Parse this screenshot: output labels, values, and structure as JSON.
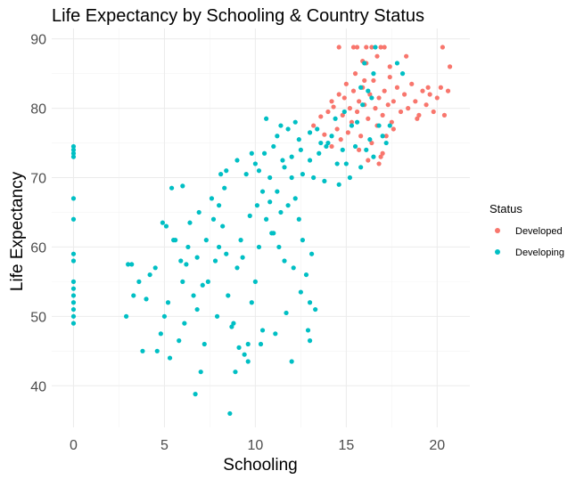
{
  "chart_data": {
    "type": "scatter",
    "title": "Life Expectancy by Schooling & Country Status",
    "xlabel": "Schooling",
    "ylabel": "Life Expectancy",
    "xlim": [
      -1.2,
      21.8
    ],
    "ylim": [
      34,
      91.5
    ],
    "xticks": [
      0,
      5,
      10,
      15,
      20
    ],
    "yticks": [
      40,
      50,
      60,
      70,
      80,
      90
    ],
    "grid": true,
    "legend": {
      "title": "Status",
      "position": "right"
    },
    "series": [
      {
        "name": "Developed",
        "color": "#F8766D",
        "points": [
          [
            13.2,
            77.5
          ],
          [
            13.6,
            78.8
          ],
          [
            13.8,
            76.2
          ],
          [
            14.0,
            79.5
          ],
          [
            14.2,
            74.5
          ],
          [
            14.3,
            80.2
          ],
          [
            14.5,
            77.0
          ],
          [
            14.6,
            82.0
          ],
          [
            14.7,
            75.5
          ],
          [
            14.8,
            79.0
          ],
          [
            14.9,
            81.5
          ],
          [
            15.0,
            83.5
          ],
          [
            15.1,
            76.5
          ],
          [
            15.2,
            80.0
          ],
          [
            15.3,
            78.0
          ],
          [
            15.4,
            82.5
          ],
          [
            15.5,
            85.0
          ],
          [
            15.6,
            79.5
          ],
          [
            15.7,
            81.0
          ],
          [
            15.8,
            76.0
          ],
          [
            15.9,
            83.0
          ],
          [
            16.0,
            80.5
          ],
          [
            16.1,
            86.5
          ],
          [
            16.2,
            78.5
          ],
          [
            16.3,
            82.0
          ],
          [
            16.4,
            75.0
          ],
          [
            16.5,
            84.0
          ],
          [
            16.6,
            80.0
          ],
          [
            16.7,
            77.5
          ],
          [
            16.8,
            81.5
          ],
          [
            16.9,
            73.0
          ],
          [
            17.0,
            79.0
          ],
          [
            17.1,
            82.5
          ],
          [
            17.2,
            76.0
          ],
          [
            17.3,
            80.5
          ],
          [
            17.4,
            84.5
          ],
          [
            17.5,
            78.0
          ],
          [
            17.6,
            81.0
          ],
          [
            17.8,
            83.0
          ],
          [
            18.0,
            79.5
          ],
          [
            18.2,
            82.0
          ],
          [
            18.4,
            80.0
          ],
          [
            18.6,
            83.5
          ],
          [
            18.8,
            81.0
          ],
          [
            19.0,
            79.0
          ],
          [
            19.2,
            82.5
          ],
          [
            19.4,
            80.5
          ],
          [
            19.6,
            82.0
          ],
          [
            19.8,
            79.5
          ],
          [
            20.0,
            81.5
          ],
          [
            20.2,
            83.0
          ],
          [
            20.4,
            79.0
          ],
          [
            20.6,
            82.5
          ],
          [
            14.6,
            88.8
          ],
          [
            15.4,
            88.8
          ],
          [
            15.6,
            88.8
          ],
          [
            16.1,
            88.8
          ],
          [
            16.4,
            88.8
          ],
          [
            16.9,
            88.8
          ],
          [
            17.1,
            88.8
          ],
          [
            20.3,
            88.8
          ],
          [
            15.9,
            86.8
          ],
          [
            16.7,
            87.5
          ],
          [
            17.4,
            86.0
          ],
          [
            18.3,
            87.5
          ],
          [
            20.7,
            86.0
          ],
          [
            16.2,
            72.5
          ],
          [
            16.8,
            72.0
          ],
          [
            17.0,
            73.5
          ],
          [
            15.7,
            74.0
          ],
          [
            17.6,
            77.0
          ],
          [
            18.9,
            78.5
          ],
          [
            19.5,
            83.0
          ],
          [
            14.2,
            81.0
          ],
          [
            16.0,
            84.0
          ]
        ]
      },
      {
        "name": "Developing",
        "color": "#00BFC4",
        "points": [
          [
            0,
            74.5
          ],
          [
            0,
            74.0
          ],
          [
            0,
            73.5
          ],
          [
            0,
            73.0
          ],
          [
            0,
            67.0
          ],
          [
            0,
            64.0
          ],
          [
            0,
            59.0
          ],
          [
            0,
            58.0
          ],
          [
            0,
            55.0
          ],
          [
            0,
            54.0
          ],
          [
            0,
            53.0
          ],
          [
            0,
            52.0
          ],
          [
            0,
            51.0
          ],
          [
            0,
            50.0
          ],
          [
            0,
            49.0
          ],
          [
            2.9,
            50.0
          ],
          [
            3.3,
            53.0
          ],
          [
            3.6,
            55.0
          ],
          [
            3.0,
            57.5
          ],
          [
            3.8,
            45.0
          ],
          [
            4.2,
            56.0
          ],
          [
            4.6,
            45.0
          ],
          [
            4.8,
            47.5
          ],
          [
            5.0,
            50.0
          ],
          [
            5.2,
            52.0
          ],
          [
            5.1,
            63.0
          ],
          [
            5.6,
            61.0
          ],
          [
            5.4,
            68.5
          ],
          [
            5.9,
            58.0
          ],
          [
            6.0,
            55.0
          ],
          [
            6.3,
            60.0
          ],
          [
            6.6,
            53.0
          ],
          [
            6.8,
            51.0
          ],
          [
            6.7,
            38.8
          ],
          [
            7.0,
            42.0
          ],
          [
            7.2,
            46.0
          ],
          [
            7.4,
            55.0
          ],
          [
            7.8,
            58.0
          ],
          [
            8.0,
            60.0
          ],
          [
            8.2,
            63.0
          ],
          [
            8.4,
            59.0
          ],
          [
            8.6,
            36.0
          ],
          [
            8.8,
            49.0
          ],
          [
            9.0,
            57.0
          ],
          [
            9.2,
            61.0
          ],
          [
            9.4,
            44.5
          ],
          [
            9.6,
            46.0
          ],
          [
            9.8,
            52.0
          ],
          [
            10.0,
            55.0
          ],
          [
            10.2,
            60.0
          ],
          [
            10.4,
            48.0
          ],
          [
            10.6,
            64.0
          ],
          [
            10.8,
            66.5
          ],
          [
            11.0,
            62.0
          ],
          [
            11.2,
            68.0
          ],
          [
            11.4,
            65.0
          ],
          [
            11.6,
            58.0
          ],
          [
            11.8,
            66.0
          ],
          [
            12.0,
            70.0
          ],
          [
            12.2,
            67.0
          ],
          [
            12.4,
            64.0
          ],
          [
            12.6,
            61.0
          ],
          [
            12.8,
            56.0
          ],
          [
            13.0,
            52.0
          ],
          [
            13.1,
            59.0
          ],
          [
            10.0,
            72.0
          ],
          [
            10.5,
            73.5
          ],
          [
            11.0,
            74.5
          ],
          [
            11.5,
            72.5
          ],
          [
            12.0,
            73.0
          ],
          [
            12.5,
            74.0
          ],
          [
            13.0,
            72.5
          ],
          [
            13.5,
            73.5
          ],
          [
            14.0,
            75.0
          ],
          [
            14.5,
            72.0
          ],
          [
            11.2,
            76.0
          ],
          [
            11.8,
            77.0
          ],
          [
            12.4,
            75.5
          ],
          [
            13.0,
            76.5
          ],
          [
            13.6,
            75.0
          ],
          [
            14.2,
            76.0
          ],
          [
            10.6,
            78.5
          ],
          [
            11.4,
            77.5
          ],
          [
            12.2,
            78.0
          ],
          [
            13.4,
            77.0
          ],
          [
            9.5,
            70.5
          ],
          [
            10.2,
            71.0
          ],
          [
            10.8,
            70.0
          ],
          [
            11.6,
            71.5
          ],
          [
            12.6,
            70.5
          ],
          [
            13.2,
            70.0
          ],
          [
            13.8,
            69.5
          ],
          [
            14.6,
            69.0
          ],
          [
            15.2,
            70.0
          ],
          [
            15.8,
            71.5
          ],
          [
            16.1,
            74.0
          ],
          [
            16.5,
            73.0
          ],
          [
            15.0,
            72.0
          ],
          [
            16.3,
            75.5
          ],
          [
            17.0,
            76.0
          ],
          [
            17.4,
            77.5
          ],
          [
            8.4,
            71.0
          ],
          [
            8.1,
            70.5
          ],
          [
            9.0,
            72.5
          ],
          [
            9.8,
            73.5
          ],
          [
            3.2,
            57.5
          ],
          [
            4.0,
            52.5
          ],
          [
            4.5,
            57.0
          ],
          [
            5.3,
            44.0
          ],
          [
            5.8,
            46.5
          ],
          [
            6.1,
            49.0
          ],
          [
            6.4,
            63.5
          ],
          [
            6.9,
            65.0
          ],
          [
            7.3,
            61.0
          ],
          [
            7.6,
            67.0
          ],
          [
            8.0,
            66.0
          ],
          [
            8.3,
            68.5
          ],
          [
            8.5,
            53.0
          ],
          [
            8.9,
            42.0
          ],
          [
            9.3,
            58.5
          ],
          [
            9.7,
            64.5
          ],
          [
            10.1,
            66.0
          ],
          [
            10.4,
            68.0
          ],
          [
            10.9,
            62.0
          ],
          [
            11.3,
            60.0
          ],
          [
            11.7,
            50.5
          ],
          [
            12.1,
            57.0
          ],
          [
            12.5,
            53.5
          ],
          [
            12.9,
            48.0
          ],
          [
            13.3,
            51.0
          ],
          [
            5.5,
            61.0
          ],
          [
            6.2,
            57.5
          ],
          [
            6.8,
            58.5
          ],
          [
            7.1,
            54.5
          ],
          [
            7.9,
            50.0
          ],
          [
            8.7,
            48.5
          ],
          [
            9.1,
            45.5
          ],
          [
            9.6,
            43.5
          ],
          [
            10.3,
            46.0
          ],
          [
            11.1,
            47.5
          ],
          [
            13.0,
            46.5
          ],
          [
            12.0,
            43.5
          ],
          [
            6.0,
            68.8
          ],
          [
            4.9,
            63.5
          ],
          [
            7.7,
            64.0
          ],
          [
            15.5,
            74.5
          ],
          [
            14.8,
            74.0
          ],
          [
            13.9,
            74.5
          ],
          [
            16.8,
            77.5
          ],
          [
            17.2,
            75.0
          ],
          [
            15.3,
            77.5
          ],
          [
            14.4,
            78.5
          ],
          [
            15.9,
            80.5
          ],
          [
            16.4,
            81.5
          ],
          [
            16.2,
            82.5
          ],
          [
            15.8,
            83.0
          ],
          [
            16.5,
            85.0
          ],
          [
            16.0,
            86.5
          ],
          [
            16.6,
            88.8
          ],
          [
            17.8,
            86.5
          ],
          [
            18.1,
            85.0
          ],
          [
            14.9,
            79.5
          ],
          [
            15.6,
            78.0
          ]
        ]
      }
    ]
  }
}
